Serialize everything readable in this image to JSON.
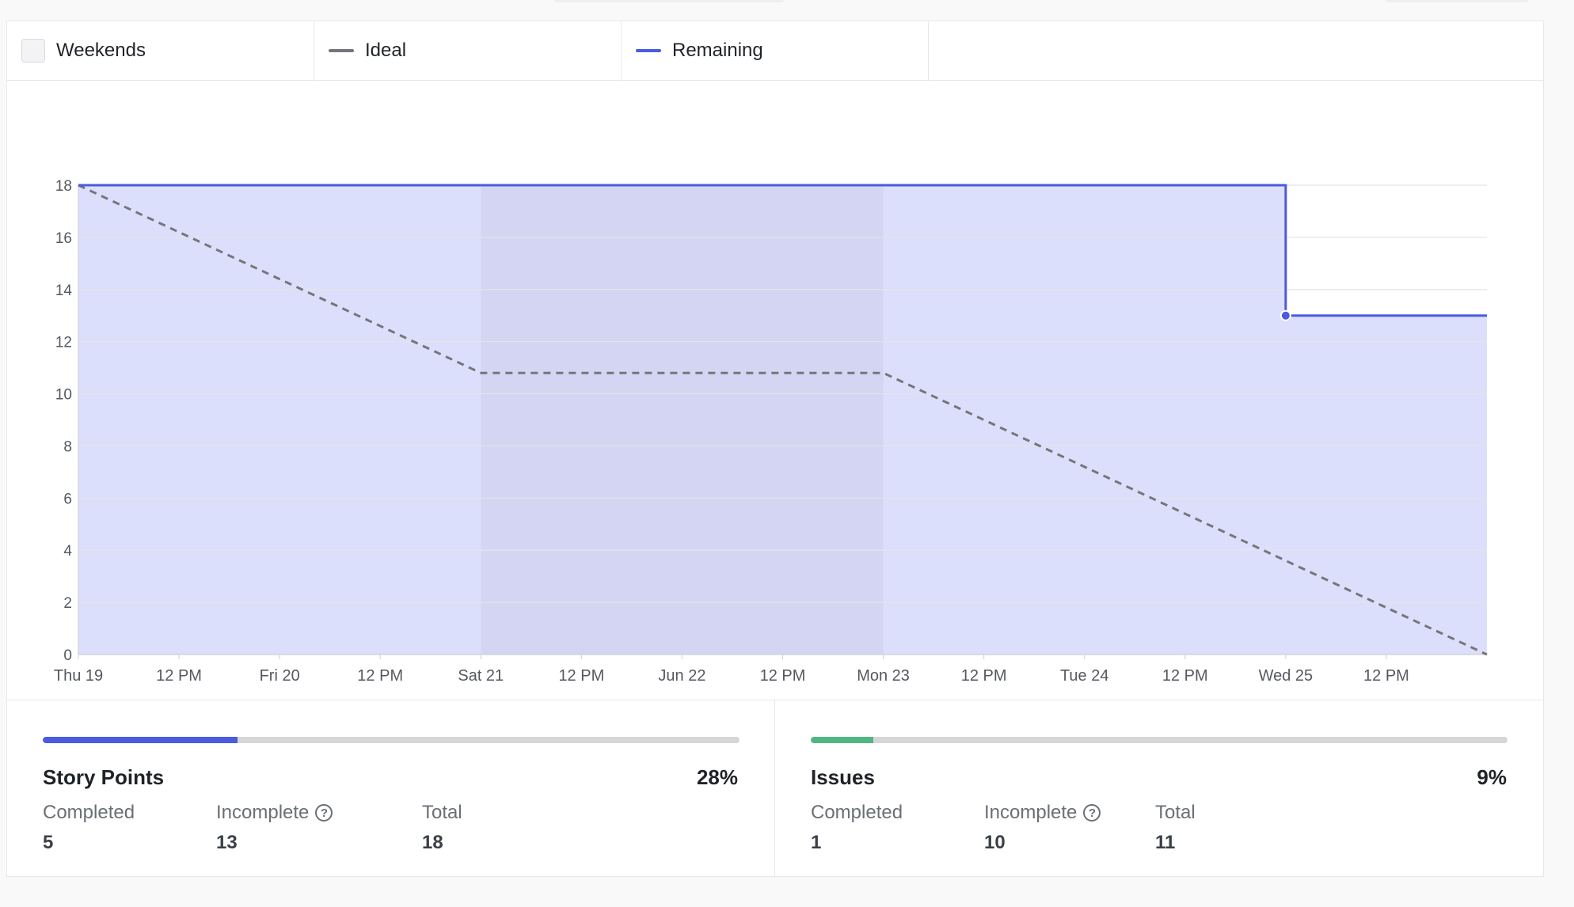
{
  "legend": {
    "weekends_label": "Weekends",
    "ideal_label": "Ideal",
    "remaining_label": "Remaining"
  },
  "colors": {
    "remaining": "#4a5be0",
    "remaining_fill": "#dcdffb",
    "weekend_fill": "#d3d5f3",
    "ideal": "#75767b",
    "issues_progress": "#4fb783",
    "story_progress": "#4a5be0"
  },
  "chart_data": {
    "type": "line",
    "x_tick_labels": [
      "Thu 19",
      "12 PM",
      "Fri 20",
      "12 PM",
      "Sat 21",
      "12 PM",
      "Jun 22",
      "12 PM",
      "Mon 23",
      "12 PM",
      "Tue 24",
      "12 PM",
      "Wed 25",
      "12 PM"
    ],
    "xlim": [
      "2025-06-19T00:00",
      "2025-06-26T00:00"
    ],
    "ylim": [
      0,
      18
    ],
    "y_ticks": [
      0,
      2,
      4,
      6,
      8,
      10,
      12,
      14,
      16,
      18
    ],
    "weekend_range": [
      "2025-06-21T00:00",
      "2025-06-23T00:00"
    ],
    "grid": true,
    "series": [
      {
        "name": "Ideal",
        "style": "dashed",
        "points": [
          {
            "x": "2025-06-19T00:00",
            "y": 18
          },
          {
            "x": "2025-06-21T00:00",
            "y": 10.8
          },
          {
            "x": "2025-06-23T00:00",
            "y": 10.8
          },
          {
            "x": "2025-06-26T00:00",
            "y": 0
          }
        ]
      },
      {
        "name": "Remaining",
        "style": "step",
        "points": [
          {
            "x": "2025-06-19T00:00",
            "y": 18
          },
          {
            "x": "2025-06-25T00:00",
            "y": 18
          },
          {
            "x": "2025-06-25T00:00",
            "y": 13
          },
          {
            "x": "2025-06-26T00:00",
            "y": 13
          }
        ],
        "marker": {
          "x": "2025-06-25T00:00",
          "y": 13
        }
      }
    ]
  },
  "stats": {
    "story_points": {
      "title": "Story Points",
      "percent_label": "28%",
      "progress": 0.28,
      "completed_label": "Completed",
      "completed_value": "5",
      "incomplete_label": "Incomplete",
      "incomplete_value": "13",
      "total_label": "Total",
      "total_value": "18"
    },
    "issues": {
      "title": "Issues",
      "percent_label": "9%",
      "progress": 0.09,
      "completed_label": "Completed",
      "completed_value": "1",
      "incomplete_label": "Incomplete",
      "incomplete_value": "10",
      "total_label": "Total",
      "total_value": "11"
    }
  },
  "icons": {
    "help": "?"
  }
}
